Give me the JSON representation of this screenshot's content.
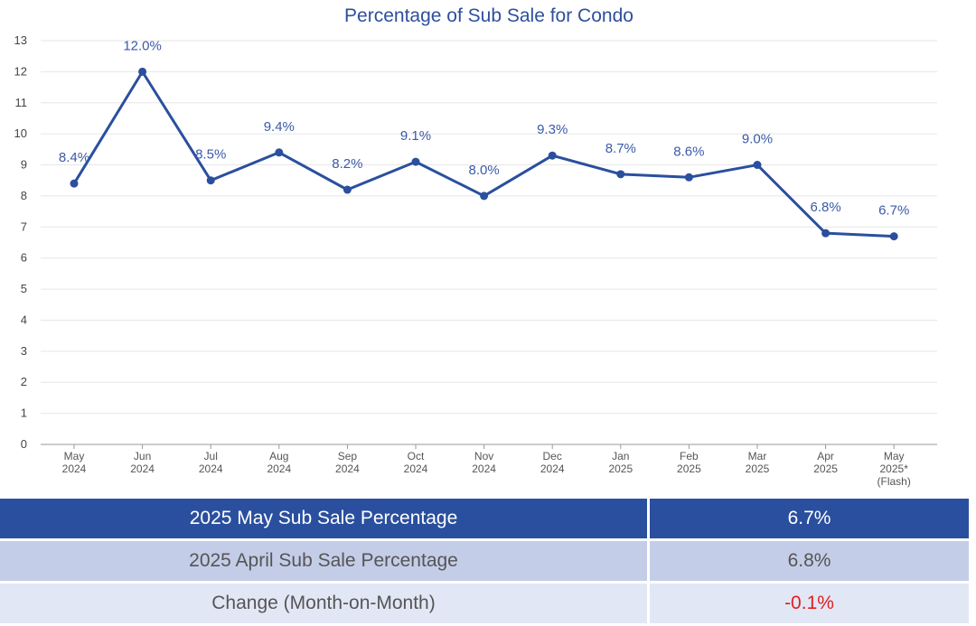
{
  "chart_data": {
    "type": "line",
    "title": "Percentage of Sub Sale for Condo",
    "categories": [
      [
        "May",
        "2024"
      ],
      [
        "Jun",
        "2024"
      ],
      [
        "Jul",
        "2024"
      ],
      [
        "Aug",
        "2024"
      ],
      [
        "Sep",
        "2024"
      ],
      [
        "Oct",
        "2024"
      ],
      [
        "Nov",
        "2024"
      ],
      [
        "Dec",
        "2024"
      ],
      [
        "Jan",
        "2025"
      ],
      [
        "Feb",
        "2025"
      ],
      [
        "Mar",
        "2025"
      ],
      [
        "Apr",
        "2025"
      ],
      [
        "May",
        "2025*",
        "(Flash)"
      ]
    ],
    "series": [
      {
        "values": [
          8.4,
          12.0,
          8.5,
          9.4,
          8.2,
          9.1,
          8.0,
          9.3,
          8.7,
          8.6,
          9.0,
          6.8,
          6.7
        ],
        "labels": [
          "8.4%",
          "12.0%",
          "8.5%",
          "9.4%",
          "8.2%",
          "9.1%",
          "8.0%",
          "9.3%",
          "8.7%",
          "8.6%",
          "9.0%",
          "6.8%",
          "6.7%"
        ],
        "color": "#2a4f9e"
      }
    ],
    "ylim": [
      0,
      13
    ],
    "yticks": [
      0,
      1,
      2,
      3,
      4,
      5,
      6,
      7,
      8,
      9,
      10,
      11,
      12,
      13
    ],
    "grid": true,
    "xlabel": "",
    "ylabel": ""
  },
  "summary_table": {
    "rows": [
      {
        "label": "2025 May Sub Sale Percentage",
        "value": "6.7%"
      },
      {
        "label": "2025 April Sub Sale Percentage",
        "value": "6.8%"
      },
      {
        "label": "Change (Month-on-Month)",
        "value": "-0.1%"
      }
    ]
  },
  "colors": {
    "accent": "#2a4f9e",
    "negative": "#e02020"
  }
}
